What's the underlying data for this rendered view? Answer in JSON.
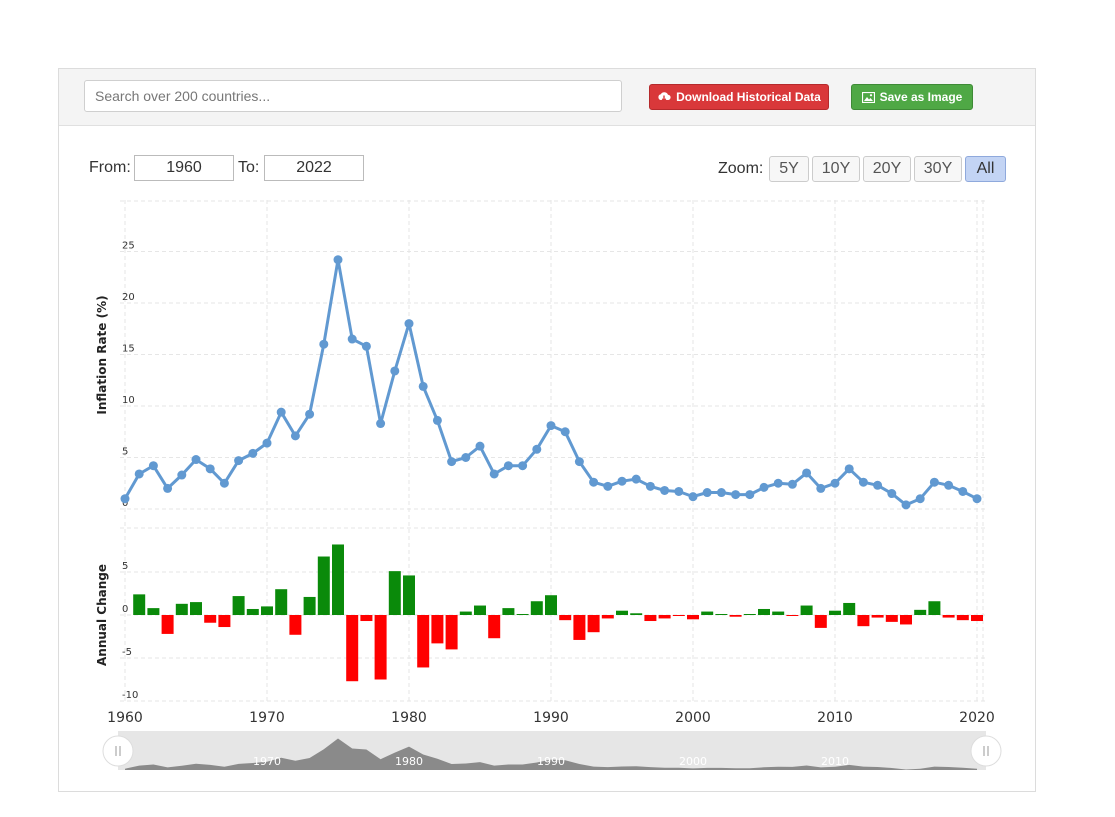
{
  "toolbar": {
    "search_placeholder": "Search over 200 countries...",
    "download_label": "Download Historical Data",
    "save_label": "Save as Image"
  },
  "range": {
    "from_label": "From:",
    "from_value": "1960",
    "to_label": "To:",
    "to_value": "2022"
  },
  "zoom": {
    "label": "Zoom:",
    "options": [
      "5Y",
      "10Y",
      "20Y",
      "30Y",
      "All"
    ],
    "active": "All"
  },
  "colors": {
    "line": "#6199d1",
    "positive": "#0a8a0a",
    "negative": "#ff0000",
    "navigator": "#8a8a8a"
  },
  "chart_data": {
    "type": "line",
    "x_axis_ticks": [
      "1960",
      "1970",
      "1980",
      "1990",
      "2000",
      "2010",
      "2020"
    ],
    "navigator_ticks": [
      "1970",
      "1980",
      "1990",
      "2000",
      "2010"
    ],
    "upper": {
      "ylabel": "Inflation Rate (%)",
      "ylim": [
        0,
        28
      ],
      "yticks": [
        "0",
        "5",
        "10",
        "15",
        "20",
        "25"
      ],
      "years": [
        1960,
        1961,
        1962,
        1963,
        1964,
        1965,
        1966,
        1967,
        1968,
        1969,
        1970,
        1971,
        1972,
        1973,
        1974,
        1975,
        1976,
        1977,
        1978,
        1979,
        1980,
        1981,
        1982,
        1983,
        1984,
        1985,
        1986,
        1987,
        1988,
        1989,
        1990,
        1991,
        1992,
        1993,
        1994,
        1995,
        1996,
        1997,
        1998,
        1999,
        2000,
        2001,
        2002,
        2003,
        2004,
        2005,
        2006,
        2007,
        2008,
        2009,
        2010,
        2011,
        2012,
        2013,
        2014,
        2015,
        2016,
        2017,
        2018,
        2019,
        2020
      ],
      "values": [
        1.0,
        3.4,
        4.2,
        2.0,
        3.3,
        4.8,
        3.9,
        2.5,
        4.7,
        5.4,
        6.4,
        9.4,
        7.1,
        9.2,
        16.0,
        24.2,
        16.5,
        15.8,
        8.3,
        13.4,
        18.0,
        11.9,
        8.6,
        4.6,
        5.0,
        6.1,
        3.4,
        4.2,
        4.2,
        5.8,
        8.1,
        7.5,
        4.6,
        2.6,
        2.2,
        2.7,
        2.9,
        2.2,
        1.8,
        1.7,
        1.2,
        1.6,
        1.6,
        1.4,
        1.4,
        2.1,
        2.5,
        2.4,
        3.5,
        2.0,
        2.5,
        3.9,
        2.6,
        2.3,
        1.5,
        0.4,
        1.0,
        2.6,
        2.3,
        1.7,
        1.0
      ]
    },
    "lower": {
      "type": "bar",
      "ylabel": "Annual Change",
      "ylim": [
        -10,
        10
      ],
      "yticks": [
        "5",
        "0",
        "-5",
        "-10"
      ],
      "years": [
        1961,
        1962,
        1963,
        1964,
        1965,
        1966,
        1967,
        1968,
        1969,
        1970,
        1971,
        1972,
        1973,
        1974,
        1975,
        1976,
        1977,
        1978,
        1979,
        1980,
        1981,
        1982,
        1983,
        1984,
        1985,
        1986,
        1987,
        1988,
        1989,
        1990,
        1991,
        1992,
        1993,
        1994,
        1995,
        1996,
        1997,
        1998,
        1999,
        2000,
        2001,
        2002,
        2003,
        2004,
        2005,
        2006,
        2007,
        2008,
        2009,
        2010,
        2011,
        2012,
        2013,
        2014,
        2015,
        2016,
        2017,
        2018,
        2019,
        2020
      ],
      "values": [
        2.4,
        0.8,
        -2.2,
        1.3,
        1.5,
        -0.9,
        -1.4,
        2.2,
        0.7,
        1.0,
        3.0,
        -2.3,
        2.1,
        6.8,
        8.2,
        -7.7,
        -0.7,
        -7.5,
        5.1,
        4.6,
        -6.1,
        -3.3,
        -4.0,
        0.4,
        1.1,
        -2.7,
        0.8,
        0.0,
        1.6,
        2.3,
        -0.6,
        -2.9,
        -2.0,
        -0.4,
        0.5,
        0.2,
        -0.7,
        -0.4,
        -0.1,
        -0.5,
        0.4,
        0.0,
        -0.2,
        0.0,
        0.7,
        0.4,
        -0.1,
        1.1,
        -1.5,
        0.5,
        1.4,
        -1.3,
        -0.3,
        -0.8,
        -1.1,
        0.6,
        1.6,
        -0.3,
        -0.6,
        -0.7
      ]
    }
  }
}
